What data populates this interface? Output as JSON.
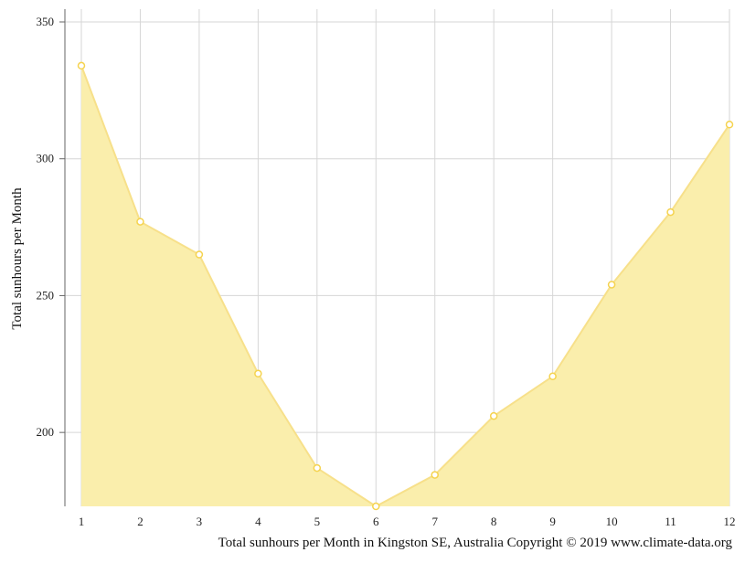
{
  "chart_data": {
    "type": "area",
    "title": "",
    "ylabel": "Total sunhours per Month",
    "xlabel": "",
    "caption": "Total sunhours per Month in Kingston SE, Australia Copyright © 2019 www.climate-data.org",
    "x": [
      1,
      2,
      3,
      4,
      5,
      6,
      7,
      8,
      9,
      10,
      11,
      12
    ],
    "series": [
      {
        "values": [
          334,
          277,
          265,
          221.5,
          187,
          173,
          184.5,
          206,
          220.5,
          254,
          280.5,
          312.5
        ]
      }
    ],
    "ylim": [
      173,
      355
    ],
    "yticks": [
      200,
      250,
      300,
      350
    ],
    "xlim": [
      1,
      12
    ],
    "grid": true,
    "legend": "none",
    "colors": {
      "fill": "#faeeac",
      "line": "#f7e08a",
      "marker_fill": "#ffffff",
      "marker_stroke": "#f5d34f",
      "grid": "#d6d6d6",
      "axis": "#666666"
    }
  }
}
